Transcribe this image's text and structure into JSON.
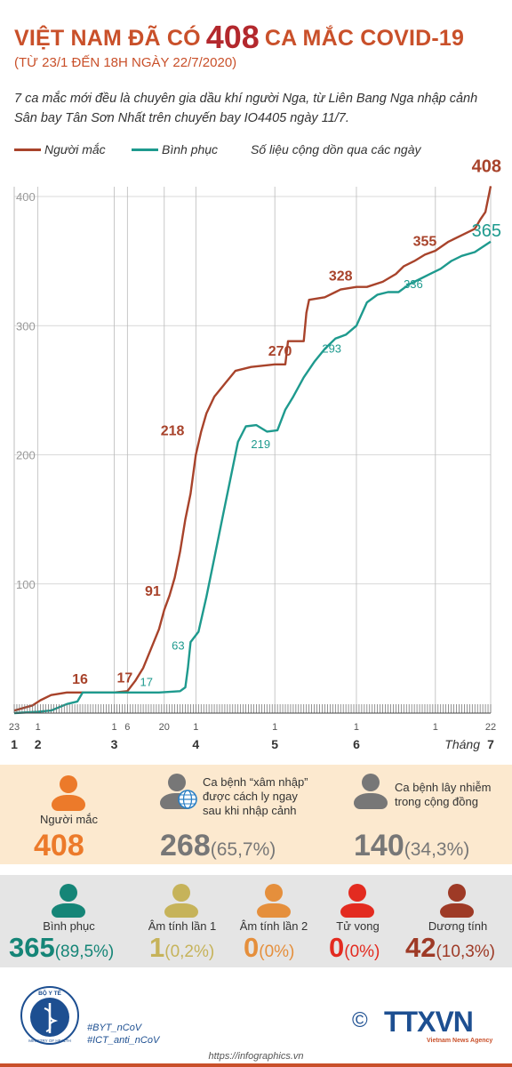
{
  "header": {
    "title_part1": "VIỆT NAM ĐÃ CÓ",
    "title_number": "408",
    "title_part2": "CA MẮC COVID-19",
    "subtitle": "(TỪ 23/1 ĐẾN 18H NGÀY 22/7/2020)"
  },
  "intro_text": "7 ca mắc mới đều là chuyên gia dầu khí người Nga, từ Liên Bang Nga nhập cảnh Sân bay Tân Sơn Nhất trên chuyến bay IO4405 ngày 11/7.",
  "legend": {
    "infected": "Người mắc",
    "recovered": "Bình phục",
    "note": "Số liệu cộng dồn qua các ngày"
  },
  "colors": {
    "infected": "#a8432b",
    "recovered": "#1e9a8e",
    "accent_orange": "#ec7a2a",
    "gray": "#777777",
    "olive": "#c6b35a",
    "orange_light": "#e58f3c",
    "red": "#e32b20",
    "dark_red": "#9e3a26",
    "teal_dark": "#158577"
  },
  "chart_data": {
    "type": "line",
    "x_unit": "day index from 23/1/2020",
    "y_ticks": [
      "100",
      "200",
      "300",
      "400"
    ],
    "ylim": [
      0,
      400
    ],
    "x_tick_labels": [
      {
        "day": 0,
        "day_label": "23",
        "month_label": "1"
      },
      {
        "day": 9,
        "day_label": "1",
        "month_label": "2"
      },
      {
        "day": 38,
        "day_label": "1",
        "month_label": "3"
      },
      {
        "day": 43,
        "day_label": "6",
        "month_label": ""
      },
      {
        "day": 57,
        "day_label": "20",
        "month_label": ""
      },
      {
        "day": 69,
        "day_label": "1",
        "month_label": "4"
      },
      {
        "day": 99,
        "day_label": "1",
        "month_label": "5"
      },
      {
        "day": 130,
        "day_label": "1",
        "month_label": "6"
      },
      {
        "day": 160,
        "day_label": "1",
        "month_label": ""
      },
      {
        "day": 181,
        "day_label": "22",
        "month_label": "7"
      }
    ],
    "month_suffix": "Tháng",
    "series": [
      {
        "name": "Người mắc",
        "points": [
          [
            0,
            2
          ],
          [
            7,
            6
          ],
          [
            10,
            10
          ],
          [
            14,
            14
          ],
          [
            20,
            16
          ],
          [
            38,
            16
          ],
          [
            43,
            17
          ],
          [
            46,
            25
          ],
          [
            49,
            35
          ],
          [
            52,
            50
          ],
          [
            55,
            65
          ],
          [
            57,
            80
          ],
          [
            59,
            91
          ],
          [
            61,
            105
          ],
          [
            63,
            125
          ],
          [
            65,
            150
          ],
          [
            67,
            170
          ],
          [
            69,
            200
          ],
          [
            71,
            218
          ],
          [
            73,
            232
          ],
          [
            76,
            245
          ],
          [
            80,
            255
          ],
          [
            84,
            265
          ],
          [
            90,
            268
          ],
          [
            99,
            270
          ],
          [
            103,
            270
          ],
          [
            104,
            288
          ],
          [
            110,
            288
          ],
          [
            111,
            310
          ],
          [
            112,
            320
          ],
          [
            118,
            322
          ],
          [
            122,
            326
          ],
          [
            124,
            328
          ],
          [
            130,
            330
          ],
          [
            134,
            330
          ],
          [
            140,
            334
          ],
          [
            145,
            340
          ],
          [
            148,
            346
          ],
          [
            152,
            350
          ],
          [
            156,
            355
          ],
          [
            160,
            358
          ],
          [
            165,
            365
          ],
          [
            170,
            370
          ],
          [
            175,
            375
          ],
          [
            177,
            382
          ],
          [
            179,
            388
          ],
          [
            181,
            408
          ]
        ],
        "labels": [
          {
            "day": 25,
            "value": 16,
            "text": "16"
          },
          {
            "day": 42,
            "value": 17,
            "text": "17"
          },
          {
            "day": 57,
            "value": 91,
            "text": "91"
          },
          {
            "day": 66,
            "value": 218,
            "text": "218"
          },
          {
            "day": 101,
            "value": 270,
            "text": "270"
          },
          {
            "day": 124,
            "value": 328,
            "text": "328"
          },
          {
            "day": 156,
            "value": 355,
            "text": "355"
          },
          {
            "day": 181,
            "value": 408,
            "text": "408"
          }
        ]
      },
      {
        "name": "Bình phục",
        "points": [
          [
            0,
            0
          ],
          [
            9,
            1
          ],
          [
            14,
            2
          ],
          [
            20,
            7
          ],
          [
            24,
            9
          ],
          [
            26,
            16
          ],
          [
            55,
            16
          ],
          [
            63,
            17
          ],
          [
            65,
            20
          ],
          [
            66,
            35
          ],
          [
            67,
            55
          ],
          [
            70,
            63
          ],
          [
            73,
            90
          ],
          [
            76,
            120
          ],
          [
            79,
            150
          ],
          [
            82,
            180
          ],
          [
            85,
            210
          ],
          [
            88,
            222
          ],
          [
            92,
            223
          ],
          [
            96,
            218
          ],
          [
            100,
            219
          ],
          [
            103,
            235
          ],
          [
            106,
            245
          ],
          [
            110,
            260
          ],
          [
            114,
            272
          ],
          [
            118,
            282
          ],
          [
            122,
            290
          ],
          [
            126,
            293
          ],
          [
            130,
            300
          ],
          [
            134,
            318
          ],
          [
            138,
            324
          ],
          [
            142,
            326
          ],
          [
            146,
            326
          ],
          [
            150,
            332
          ],
          [
            154,
            336
          ],
          [
            158,
            340
          ],
          [
            162,
            344
          ],
          [
            166,
            350
          ],
          [
            170,
            354
          ],
          [
            175,
            357
          ],
          [
            178,
            361
          ],
          [
            181,
            365
          ]
        ],
        "labels": [
          {
            "day": 59,
            "value": 17,
            "text": "17"
          },
          {
            "day": 67,
            "value": 63,
            "text": "63"
          },
          {
            "day": 97,
            "value": 219,
            "text": "219"
          },
          {
            "day": 124,
            "value": 293,
            "text": "293"
          },
          {
            "day": 157,
            "value": 336,
            "text": "336"
          },
          {
            "day": 181,
            "value": 365,
            "text": "365"
          }
        ]
      }
    ]
  },
  "stats_row1": {
    "infected": {
      "label": "Người mắc",
      "value": "408"
    },
    "imported": {
      "label": "Ca bệnh “xâm nhập” được cách ly ngay sau khi nhập cảnh",
      "value": "268",
      "pct": "(65,7%)"
    },
    "community": {
      "label": "Ca bệnh lây nhiễm trong cộng đồng",
      "value": "140",
      "pct": "(34,3%)"
    }
  },
  "stats_row2": {
    "recovered": {
      "label": "Bình phục",
      "value": "365",
      "pct": "(89,5%)"
    },
    "neg1": {
      "label": "Âm tính lần 1",
      "value": "1",
      "pct": "(0,2%)"
    },
    "neg2": {
      "label": "Âm tính lần 2",
      "value": "0",
      "pct": "(0%)"
    },
    "deaths": {
      "label": "Tử vong",
      "value": "0",
      "pct": "(0%)"
    },
    "positive": {
      "label": "Dương tính",
      "value": "42",
      "pct": "(10,3%)"
    }
  },
  "footer": {
    "logo_text": "BỘ Y TẾ",
    "logo_sub": "MINISTRY OF HEALTH",
    "tag1": "#BYT_nCoV",
    "tag2": "#ICT_anti_nCoV",
    "copyright": "©",
    "brand": "TTXVN",
    "brand_sub": "Vietnam News Agency",
    "website": "https://infographics.vn"
  }
}
